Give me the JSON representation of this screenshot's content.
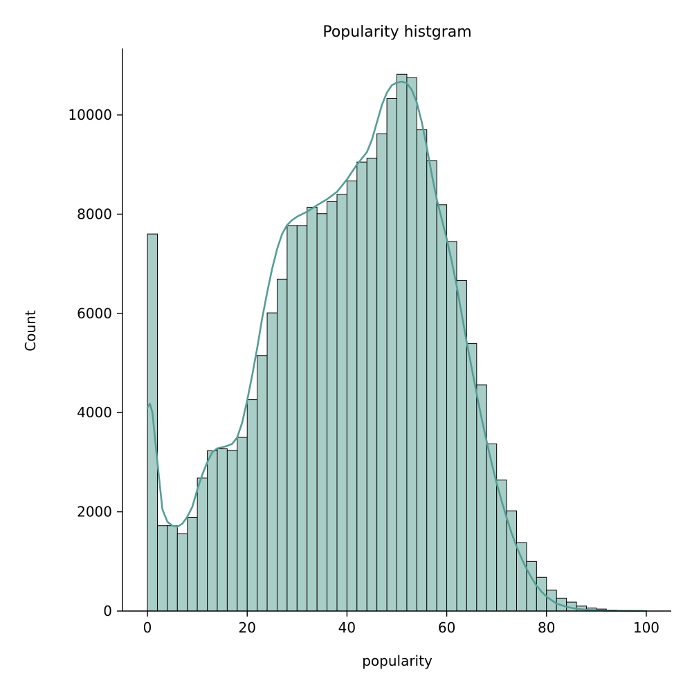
{
  "chart_data": {
    "type": "bar",
    "subtype": "histogram",
    "title": "Popularity histgram",
    "xlabel": "popularity",
    "ylabel": "Count",
    "xlim": [
      -5,
      105
    ],
    "ylim": [
      0,
      11340
    ],
    "xticks": [
      0,
      20,
      40,
      60,
      80,
      100
    ],
    "yticks": [
      0,
      2000,
      4000,
      6000,
      8000,
      10000
    ],
    "grid": false,
    "colors": {
      "bar_fill": "#a9cec7",
      "bar_edge": "#000000",
      "kde_line": "#559d97"
    },
    "bins": {
      "start": 0,
      "width": 2,
      "counts": [
        7600,
        1720,
        1720,
        1560,
        1890,
        2680,
        3230,
        3270,
        3240,
        3500,
        4260,
        5150,
        6010,
        6690,
        7770,
        7770,
        8140,
        8010,
        8250,
        8400,
        8670,
        9050,
        9130,
        9620,
        10330,
        10820,
        10750,
        9700,
        9080,
        8190,
        7450,
        6660,
        5390,
        4560,
        3370,
        2640,
        2020,
        1380,
        1000,
        680,
        420,
        260,
        180,
        100,
        60,
        40,
        20,
        10,
        5,
        3
      ]
    },
    "kde": {
      "x": [
        0,
        0.5,
        1,
        2,
        3,
        4,
        5,
        6,
        7,
        8,
        9,
        10,
        11,
        12,
        13,
        14,
        15,
        16,
        17,
        18,
        19,
        20,
        21,
        22,
        23,
        24,
        25,
        26,
        27,
        28,
        29,
        30,
        32,
        34,
        36,
        38,
        40,
        42,
        44,
        45,
        46,
        47,
        48,
        49,
        50,
        51,
        52,
        53,
        54,
        55,
        56,
        57,
        58,
        59,
        60,
        61,
        62,
        63,
        64,
        65,
        66,
        67,
        68,
        69,
        70,
        71,
        72,
        73,
        74,
        75,
        76,
        77,
        78,
        79,
        80,
        82,
        84,
        86,
        88,
        90,
        92,
        95,
        98,
        100
      ],
      "y": [
        4100,
        4180,
        4000,
        3000,
        2050,
        1800,
        1720,
        1700,
        1760,
        1900,
        2100,
        2450,
        2750,
        3000,
        3200,
        3280,
        3300,
        3330,
        3370,
        3500,
        3800,
        4250,
        4750,
        5300,
        5900,
        6420,
        6900,
        7300,
        7600,
        7780,
        7880,
        7950,
        8050,
        8180,
        8300,
        8450,
        8700,
        9000,
        9250,
        9500,
        9850,
        10200,
        10450,
        10600,
        10650,
        10670,
        10640,
        10500,
        10250,
        9850,
        9350,
        8800,
        8300,
        7900,
        7500,
        7050,
        6550,
        5980,
        5420,
        4900,
        4380,
        3880,
        3420,
        2980,
        2580,
        2220,
        1880,
        1570,
        1300,
        1060,
        850,
        670,
        510,
        390,
        290,
        150,
        85,
        45,
        25,
        15,
        8,
        4,
        2,
        1
      ]
    }
  }
}
